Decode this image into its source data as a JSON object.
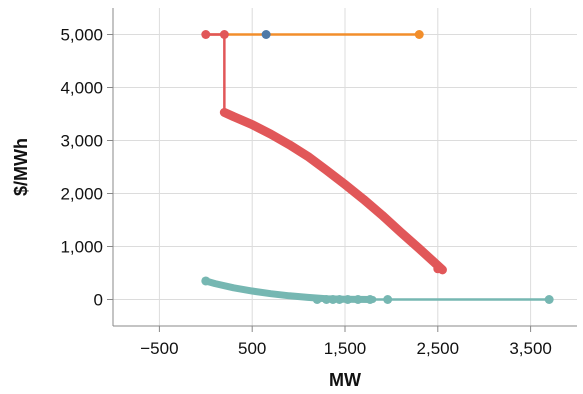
{
  "chart_data": {
    "type": "line",
    "title": "",
    "xlabel": "MW",
    "ylabel": "$/MWh",
    "xlim": [
      -1000,
      4000
    ],
    "ylim": [
      -500,
      5500
    ],
    "x_ticks": [
      -500,
      500,
      1500,
      2500,
      3500
    ],
    "x_tick_labels": [
      "−500",
      "500",
      "1,500",
      "2,500",
      "3,500"
    ],
    "y_ticks": [
      0,
      1000,
      2000,
      3000,
      4000,
      5000
    ],
    "y_tick_labels": [
      "0",
      "1,000",
      "2,000",
      "3,000",
      "4,000",
      "5,000"
    ],
    "grid": true,
    "legend": "none",
    "series": [
      {
        "color": "#f28e2b",
        "points": [
          [
            0,
            5000
          ],
          [
            2300,
            5000
          ]
        ],
        "markers": [
          [
            2300,
            5000
          ]
        ]
      },
      {
        "color": "#4e79a7",
        "points": [],
        "markers": [
          [
            650,
            5000
          ]
        ]
      },
      {
        "color": "#e15759",
        "points": [
          [
            0,
            5000
          ],
          [
            200,
            5000
          ],
          [
            200,
            3530
          ],
          [
            300,
            3450
          ],
          [
            500,
            3300
          ],
          [
            700,
            3120
          ],
          [
            900,
            2920
          ],
          [
            1100,
            2700
          ],
          [
            1300,
            2440
          ],
          [
            1500,
            2170
          ],
          [
            1700,
            1890
          ],
          [
            1900,
            1590
          ],
          [
            2100,
            1270
          ],
          [
            2300,
            960
          ],
          [
            2450,
            720
          ],
          [
            2550,
            560
          ]
        ],
        "markers": [
          [
            0,
            5000
          ],
          [
            200,
            5000
          ],
          [
            2500,
            580
          ]
        ]
      },
      {
        "color": "#76b7b2",
        "points": [
          [
            0,
            350
          ],
          [
            100,
            300
          ],
          [
            300,
            220
          ],
          [
            500,
            160
          ],
          [
            700,
            110
          ],
          [
            900,
            70
          ],
          [
            1100,
            40
          ],
          [
            1300,
            15
          ],
          [
            1500,
            5
          ],
          [
            1800,
            0
          ],
          [
            2200,
            0
          ],
          [
            3700,
            0
          ]
        ],
        "markers": [
          [
            0,
            350
          ],
          [
            1200,
            0
          ],
          [
            1300,
            0
          ],
          [
            1370,
            0
          ],
          [
            1440,
            0
          ],
          [
            1530,
            0
          ],
          [
            1640,
            0
          ],
          [
            1770,
            0
          ],
          [
            1960,
            0
          ],
          [
            3700,
            0
          ]
        ]
      }
    ]
  }
}
